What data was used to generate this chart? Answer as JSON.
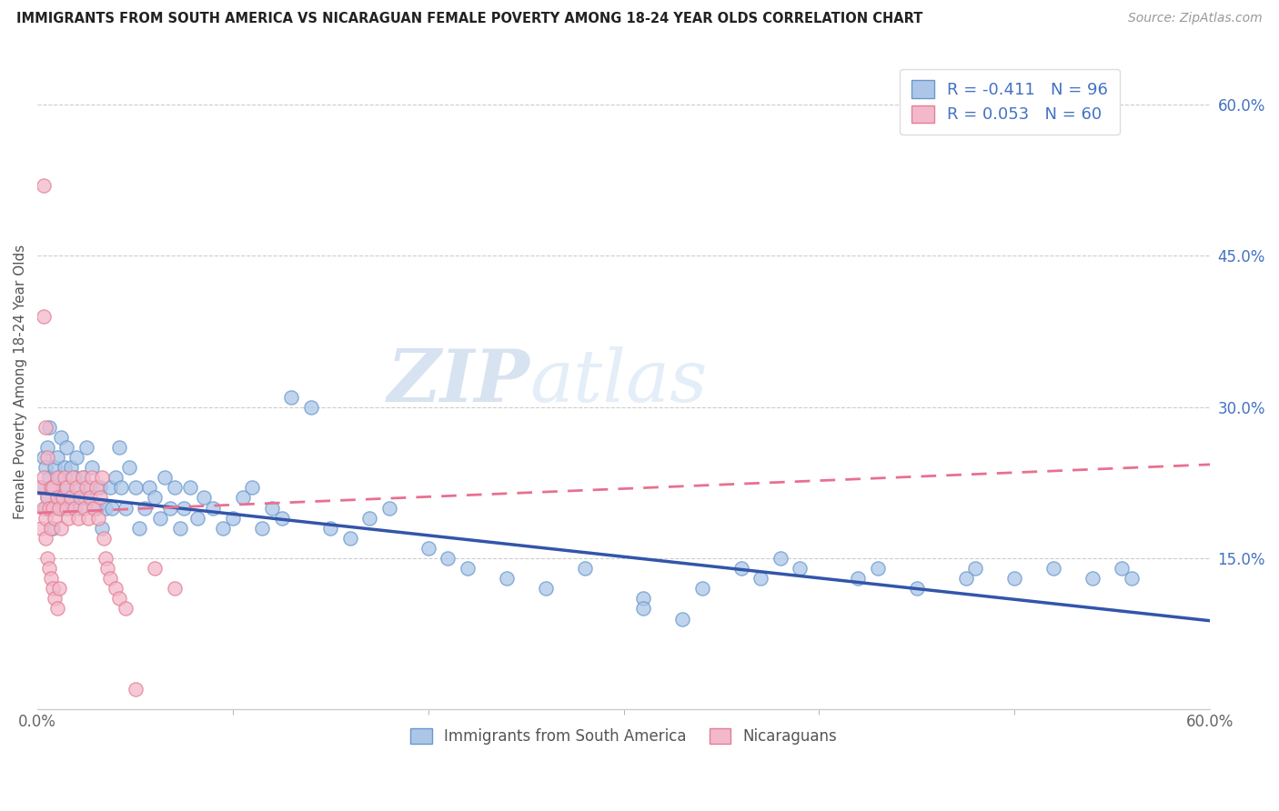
{
  "title": "IMMIGRANTS FROM SOUTH AMERICA VS NICARAGUAN FEMALE POVERTY AMONG 18-24 YEAR OLDS CORRELATION CHART",
  "source": "Source: ZipAtlas.com",
  "ylabel": "Female Poverty Among 18-24 Year Olds",
  "right_yticklabels": [
    "",
    "15.0%",
    "30.0%",
    "45.0%",
    "60.0%"
  ],
  "right_ytick_vals": [
    0.0,
    0.15,
    0.3,
    0.45,
    0.6
  ],
  "grid_lines": [
    0.15,
    0.3,
    0.45,
    0.6
  ],
  "legend_entries": [
    {
      "label": "R = -0.411   N = 96",
      "color": "#adc6e8"
    },
    {
      "label": "R = 0.053   N = 60",
      "color": "#f4b8cc"
    }
  ],
  "legend_bottom": [
    "Immigrants from South America",
    "Nicaraguans"
  ],
  "blue_dot_color": "#adc6e8",
  "blue_edge_color": "#6699cc",
  "pink_dot_color": "#f4b8cc",
  "pink_edge_color": "#e08090",
  "blue_line_color": "#3355aa",
  "pink_line_color": "#e87090",
  "watermark_zip": "ZIP",
  "watermark_atlas": "atlas",
  "xmin": 0.0,
  "xmax": 0.6,
  "ymin": 0.0,
  "ymax": 0.65,
  "blue_trend_x0": 0.0,
  "blue_trend_y0": 0.215,
  "blue_trend_x1": 0.6,
  "blue_trend_y1": 0.088,
  "pink_trend_x0": 0.0,
  "pink_trend_y0": 0.195,
  "pink_trend_x1": 0.6,
  "pink_trend_y1": 0.243,
  "blue_x": [
    0.002,
    0.003,
    0.004,
    0.004,
    0.005,
    0.005,
    0.006,
    0.006,
    0.007,
    0.008,
    0.008,
    0.009,
    0.01,
    0.01,
    0.011,
    0.012,
    0.012,
    0.013,
    0.014,
    0.015,
    0.015,
    0.016,
    0.017,
    0.018,
    0.019,
    0.02,
    0.021,
    0.022,
    0.023,
    0.024,
    0.025,
    0.027,
    0.028,
    0.03,
    0.032,
    0.033,
    0.035,
    0.037,
    0.038,
    0.04,
    0.042,
    0.043,
    0.045,
    0.047,
    0.05,
    0.052,
    0.055,
    0.057,
    0.06,
    0.063,
    0.065,
    0.068,
    0.07,
    0.073,
    0.075,
    0.078,
    0.082,
    0.085,
    0.09,
    0.095,
    0.1,
    0.105,
    0.11,
    0.115,
    0.12,
    0.125,
    0.13,
    0.14,
    0.15,
    0.16,
    0.17,
    0.18,
    0.2,
    0.21,
    0.22,
    0.24,
    0.26,
    0.28,
    0.31,
    0.34,
    0.37,
    0.39,
    0.42,
    0.45,
    0.48,
    0.5,
    0.52,
    0.54,
    0.555,
    0.56,
    0.36,
    0.38,
    0.31,
    0.33,
    0.43,
    0.475
  ],
  "blue_y": [
    0.22,
    0.25,
    0.2,
    0.24,
    0.26,
    0.21,
    0.23,
    0.28,
    0.2,
    0.22,
    0.18,
    0.24,
    0.25,
    0.21,
    0.23,
    0.27,
    0.2,
    0.22,
    0.24,
    0.26,
    0.22,
    0.2,
    0.24,
    0.21,
    0.23,
    0.25,
    0.22,
    0.2,
    0.23,
    0.21,
    0.26,
    0.22,
    0.24,
    0.2,
    0.22,
    0.18,
    0.2,
    0.22,
    0.2,
    0.23,
    0.26,
    0.22,
    0.2,
    0.24,
    0.22,
    0.18,
    0.2,
    0.22,
    0.21,
    0.19,
    0.23,
    0.2,
    0.22,
    0.18,
    0.2,
    0.22,
    0.19,
    0.21,
    0.2,
    0.18,
    0.19,
    0.21,
    0.22,
    0.18,
    0.2,
    0.19,
    0.31,
    0.3,
    0.18,
    0.17,
    0.19,
    0.2,
    0.16,
    0.15,
    0.14,
    0.13,
    0.12,
    0.14,
    0.11,
    0.12,
    0.13,
    0.14,
    0.13,
    0.12,
    0.14,
    0.13,
    0.14,
    0.13,
    0.14,
    0.13,
    0.14,
    0.15,
    0.1,
    0.09,
    0.14,
    0.13
  ],
  "pink_x": [
    0.001,
    0.002,
    0.003,
    0.003,
    0.004,
    0.004,
    0.005,
    0.005,
    0.006,
    0.007,
    0.007,
    0.008,
    0.008,
    0.009,
    0.01,
    0.01,
    0.011,
    0.012,
    0.013,
    0.014,
    0.015,
    0.015,
    0.016,
    0.017,
    0.018,
    0.019,
    0.02,
    0.021,
    0.022,
    0.023,
    0.024,
    0.025,
    0.026,
    0.027,
    0.028,
    0.029,
    0.03,
    0.031,
    0.032,
    0.033,
    0.034,
    0.035,
    0.036,
    0.037,
    0.04,
    0.042,
    0.045,
    0.05,
    0.06,
    0.07,
    0.003,
    0.003,
    0.004,
    0.005,
    0.006,
    0.007,
    0.008,
    0.009,
    0.01,
    0.011
  ],
  "pink_y": [
    0.22,
    0.18,
    0.23,
    0.2,
    0.17,
    0.19,
    0.21,
    0.25,
    0.2,
    0.22,
    0.18,
    0.2,
    0.22,
    0.19,
    0.21,
    0.23,
    0.2,
    0.18,
    0.21,
    0.23,
    0.2,
    0.22,
    0.19,
    0.21,
    0.23,
    0.2,
    0.22,
    0.19,
    0.21,
    0.23,
    0.2,
    0.22,
    0.19,
    0.21,
    0.23,
    0.2,
    0.22,
    0.19,
    0.21,
    0.23,
    0.17,
    0.15,
    0.14,
    0.13,
    0.12,
    0.11,
    0.1,
    0.02,
    0.14,
    0.12,
    0.52,
    0.39,
    0.28,
    0.15,
    0.14,
    0.13,
    0.12,
    0.11,
    0.1,
    0.12
  ]
}
